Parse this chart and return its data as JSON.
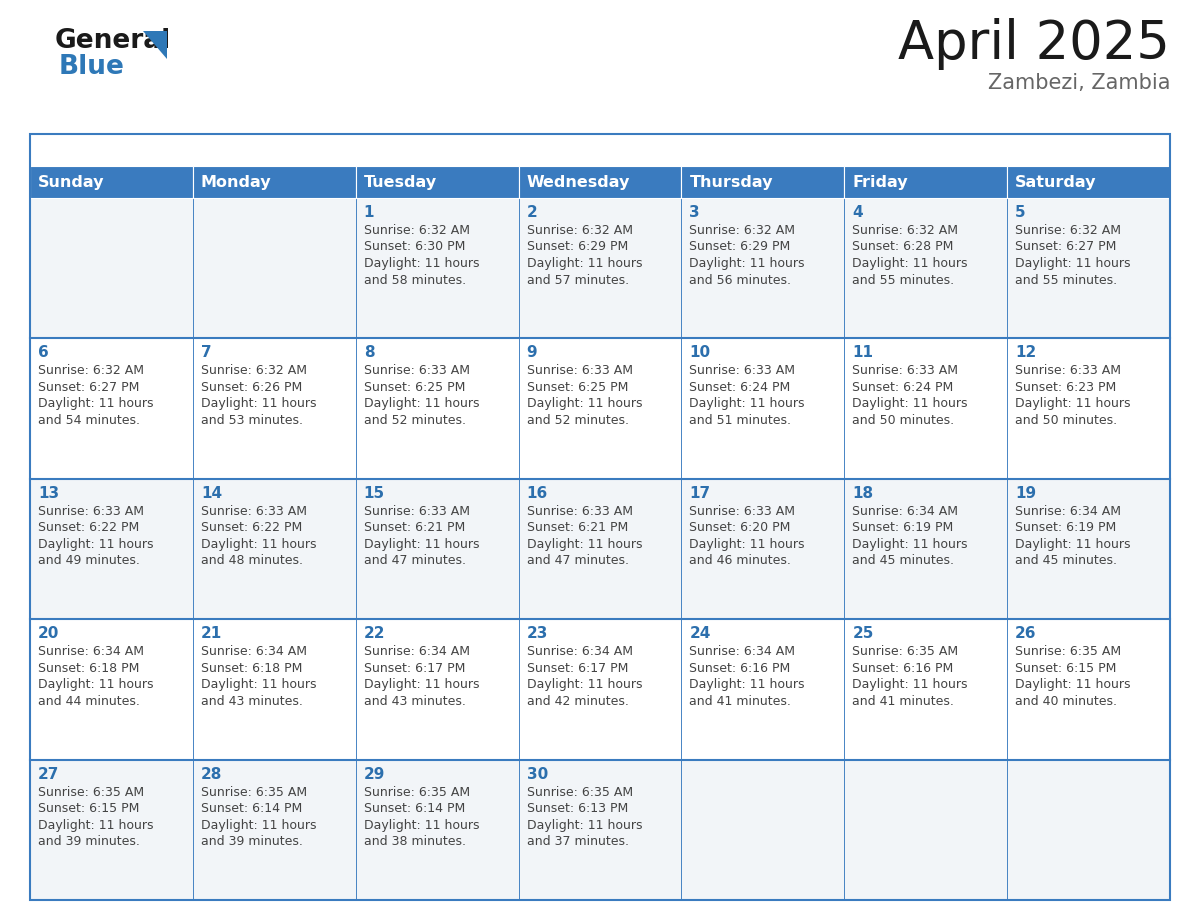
{
  "title": "April 2025",
  "subtitle": "Zambezi, Zambia",
  "days_of_week": [
    "Sunday",
    "Monday",
    "Tuesday",
    "Wednesday",
    "Thursday",
    "Friday",
    "Saturday"
  ],
  "header_bg": "#3a7bbf",
  "header_text_color": "#ffffff",
  "row_bg": [
    "#f2f5f8",
    "#ffffff"
  ],
  "border_color": "#3a7bbf",
  "day_number_color": "#2c6fad",
  "text_color": "#444444",
  "title_color": "#1a1a1a",
  "subtitle_color": "#666666",
  "logo_text_color": "#1a1a1a",
  "logo_blue_color": "#2e78b7",
  "calendar_data": [
    [
      {
        "day": null,
        "sunrise": null,
        "sunset": null,
        "daylight": null
      },
      {
        "day": null,
        "sunrise": null,
        "sunset": null,
        "daylight": null
      },
      {
        "day": 1,
        "sunrise": "6:32 AM",
        "sunset": "6:30 PM",
        "daylight": "11 hours\nand 58 minutes."
      },
      {
        "day": 2,
        "sunrise": "6:32 AM",
        "sunset": "6:29 PM",
        "daylight": "11 hours\nand 57 minutes."
      },
      {
        "day": 3,
        "sunrise": "6:32 AM",
        "sunset": "6:29 PM",
        "daylight": "11 hours\nand 56 minutes."
      },
      {
        "day": 4,
        "sunrise": "6:32 AM",
        "sunset": "6:28 PM",
        "daylight": "11 hours\nand 55 minutes."
      },
      {
        "day": 5,
        "sunrise": "6:32 AM",
        "sunset": "6:27 PM",
        "daylight": "11 hours\nand 55 minutes."
      }
    ],
    [
      {
        "day": 6,
        "sunrise": "6:32 AM",
        "sunset": "6:27 PM",
        "daylight": "11 hours\nand 54 minutes."
      },
      {
        "day": 7,
        "sunrise": "6:32 AM",
        "sunset": "6:26 PM",
        "daylight": "11 hours\nand 53 minutes."
      },
      {
        "day": 8,
        "sunrise": "6:33 AM",
        "sunset": "6:25 PM",
        "daylight": "11 hours\nand 52 minutes."
      },
      {
        "day": 9,
        "sunrise": "6:33 AM",
        "sunset": "6:25 PM",
        "daylight": "11 hours\nand 52 minutes."
      },
      {
        "day": 10,
        "sunrise": "6:33 AM",
        "sunset": "6:24 PM",
        "daylight": "11 hours\nand 51 minutes."
      },
      {
        "day": 11,
        "sunrise": "6:33 AM",
        "sunset": "6:24 PM",
        "daylight": "11 hours\nand 50 minutes."
      },
      {
        "day": 12,
        "sunrise": "6:33 AM",
        "sunset": "6:23 PM",
        "daylight": "11 hours\nand 50 minutes."
      }
    ],
    [
      {
        "day": 13,
        "sunrise": "6:33 AM",
        "sunset": "6:22 PM",
        "daylight": "11 hours\nand 49 minutes."
      },
      {
        "day": 14,
        "sunrise": "6:33 AM",
        "sunset": "6:22 PM",
        "daylight": "11 hours\nand 48 minutes."
      },
      {
        "day": 15,
        "sunrise": "6:33 AM",
        "sunset": "6:21 PM",
        "daylight": "11 hours\nand 47 minutes."
      },
      {
        "day": 16,
        "sunrise": "6:33 AM",
        "sunset": "6:21 PM",
        "daylight": "11 hours\nand 47 minutes."
      },
      {
        "day": 17,
        "sunrise": "6:33 AM",
        "sunset": "6:20 PM",
        "daylight": "11 hours\nand 46 minutes."
      },
      {
        "day": 18,
        "sunrise": "6:34 AM",
        "sunset": "6:19 PM",
        "daylight": "11 hours\nand 45 minutes."
      },
      {
        "day": 19,
        "sunrise": "6:34 AM",
        "sunset": "6:19 PM",
        "daylight": "11 hours\nand 45 minutes."
      }
    ],
    [
      {
        "day": 20,
        "sunrise": "6:34 AM",
        "sunset": "6:18 PM",
        "daylight": "11 hours\nand 44 minutes."
      },
      {
        "day": 21,
        "sunrise": "6:34 AM",
        "sunset": "6:18 PM",
        "daylight": "11 hours\nand 43 minutes."
      },
      {
        "day": 22,
        "sunrise": "6:34 AM",
        "sunset": "6:17 PM",
        "daylight": "11 hours\nand 43 minutes."
      },
      {
        "day": 23,
        "sunrise": "6:34 AM",
        "sunset": "6:17 PM",
        "daylight": "11 hours\nand 42 minutes."
      },
      {
        "day": 24,
        "sunrise": "6:34 AM",
        "sunset": "6:16 PM",
        "daylight": "11 hours\nand 41 minutes."
      },
      {
        "day": 25,
        "sunrise": "6:35 AM",
        "sunset": "6:16 PM",
        "daylight": "11 hours\nand 41 minutes."
      },
      {
        "day": 26,
        "sunrise": "6:35 AM",
        "sunset": "6:15 PM",
        "daylight": "11 hours\nand 40 minutes."
      }
    ],
    [
      {
        "day": 27,
        "sunrise": "6:35 AM",
        "sunset": "6:15 PM",
        "daylight": "11 hours\nand 39 minutes."
      },
      {
        "day": 28,
        "sunrise": "6:35 AM",
        "sunset": "6:14 PM",
        "daylight": "11 hours\nand 39 minutes."
      },
      {
        "day": 29,
        "sunrise": "6:35 AM",
        "sunset": "6:14 PM",
        "daylight": "11 hours\nand 38 minutes."
      },
      {
        "day": 30,
        "sunrise": "6:35 AM",
        "sunset": "6:13 PM",
        "daylight": "11 hours\nand 37 minutes."
      },
      {
        "day": null,
        "sunrise": null,
        "sunset": null,
        "daylight": null
      },
      {
        "day": null,
        "sunrise": null,
        "sunset": null,
        "daylight": null
      },
      {
        "day": null,
        "sunrise": null,
        "sunset": null,
        "daylight": null
      }
    ]
  ]
}
